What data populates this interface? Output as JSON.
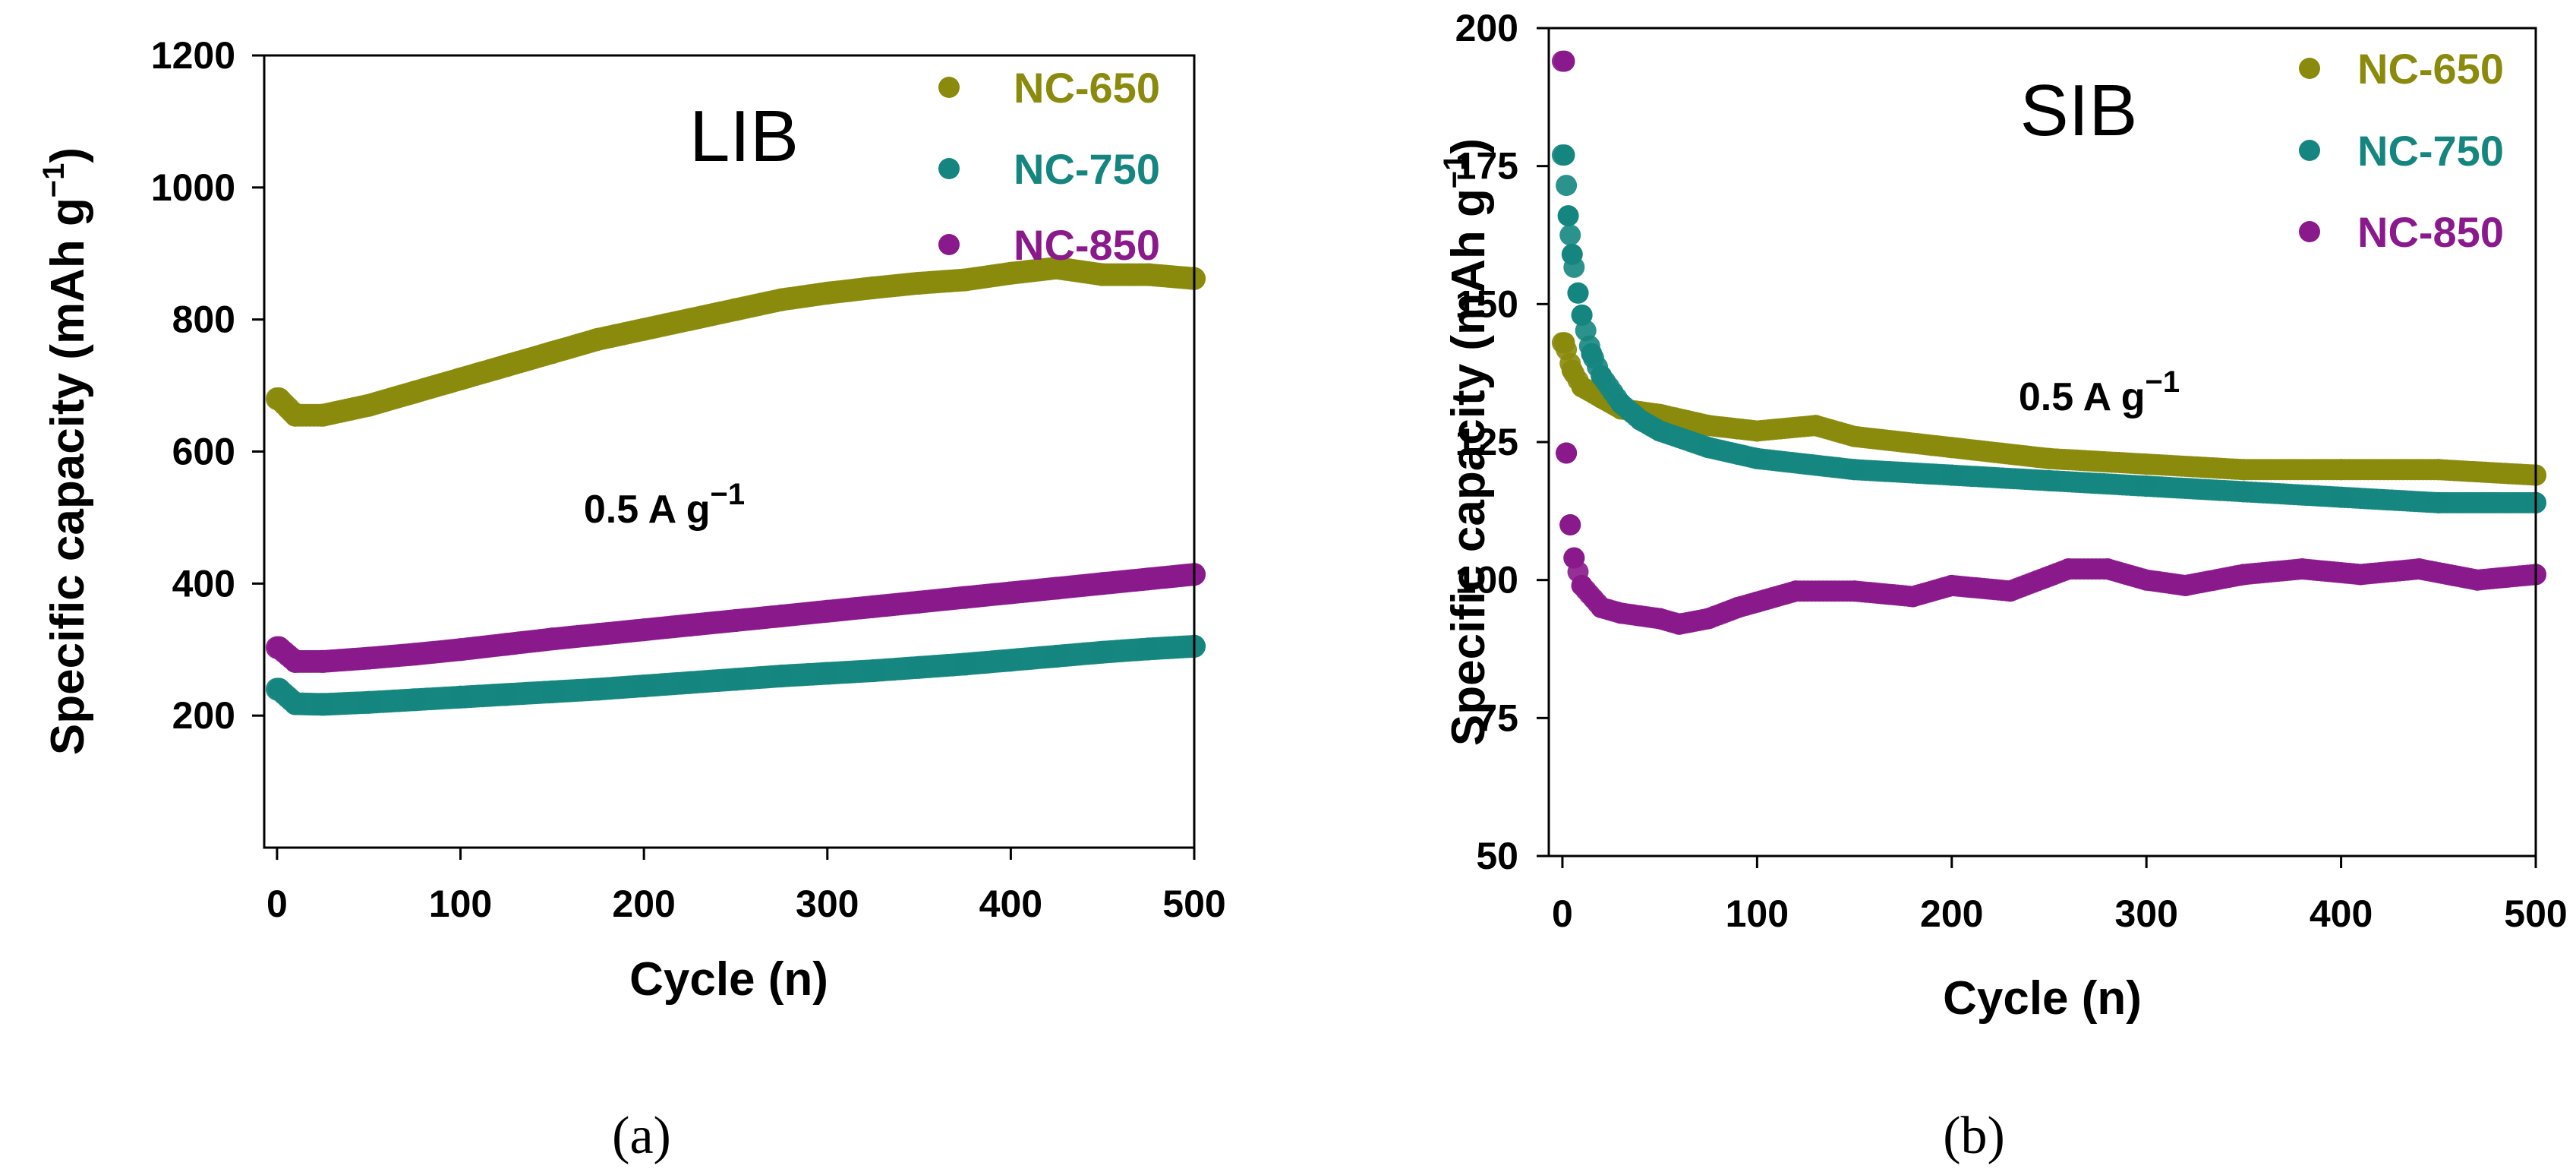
{
  "colors": {
    "NC-650": "#8a8a0c",
    "NC-750": "#15867f",
    "NC-850": "#8a1a8c"
  },
  "chart_data": [
    {
      "type": "scatter",
      "panel_label": "(a)",
      "title": "LIB",
      "annotation": {
        "text": "0.5 A g",
        "sup": "−1"
      },
      "xlabel": "Cycle (n)",
      "ylabel": {
        "text": "Specific capacity (mAh g",
        "sup": "−1",
        "close": ")"
      },
      "xlim": [
        -7,
        500
      ],
      "ylim": [
        0,
        1200
      ],
      "xticks": [
        0,
        100,
        200,
        300,
        400,
        500
      ],
      "yticks": [
        200,
        400,
        600,
        800,
        1000,
        1200
      ],
      "legend": [
        "NC-650",
        "NC-750",
        "NC-850"
      ],
      "legend_position": "top-right",
      "series": [
        {
          "name": "NC-650",
          "x": [
            1,
            10,
            25,
            50,
            75,
            100,
            125,
            150,
            175,
            200,
            225,
            250,
            275,
            300,
            325,
            350,
            375,
            400,
            425,
            450,
            475,
            500
          ],
          "y": [
            680,
            655,
            655,
            670,
            690,
            710,
            730,
            750,
            770,
            785,
            800,
            815,
            830,
            840,
            848,
            855,
            860,
            870,
            878,
            868,
            868,
            862
          ]
        },
        {
          "name": "NC-750",
          "x": [
            1,
            10,
            25,
            50,
            75,
            100,
            125,
            150,
            175,
            200,
            225,
            250,
            275,
            300,
            325,
            350,
            375,
            400,
            425,
            450,
            475,
            500
          ],
          "y": [
            240,
            218,
            217,
            220,
            224,
            228,
            232,
            236,
            240,
            245,
            250,
            255,
            260,
            264,
            268,
            273,
            278,
            284,
            290,
            296,
            301,
            305
          ]
        },
        {
          "name": "NC-850",
          "x": [
            1,
            10,
            25,
            50,
            75,
            100,
            125,
            150,
            175,
            200,
            225,
            250,
            275,
            300,
            325,
            350,
            375,
            400,
            425,
            450,
            475,
            500
          ],
          "y": [
            303,
            282,
            282,
            287,
            293,
            300,
            308,
            316,
            323,
            330,
            337,
            344,
            351,
            358,
            365,
            372,
            379,
            386,
            393,
            400,
            407,
            414
          ]
        }
      ]
    },
    {
      "type": "scatter",
      "panel_label": "(b)",
      "title": "SIB",
      "annotation": {
        "text": "0.5 A g",
        "sup": "−1"
      },
      "xlabel": "Cycle (n)",
      "ylabel": {
        "text": "Specific capacity (mAh g",
        "sup": "−1",
        "close": ")"
      },
      "xlim": [
        -7,
        500
      ],
      "ylim": [
        50,
        200
      ],
      "xticks": [
        0,
        100,
        200,
        300,
        400,
        500
      ],
      "yticks": [
        50,
        75,
        100,
        125,
        150,
        175,
        200
      ],
      "legend": [
        "NC-650",
        "NC-750",
        "NC-850"
      ],
      "legend_position": "top-right",
      "series": [
        {
          "name": "NC-650",
          "x": [
            1,
            5,
            10,
            20,
            30,
            50,
            75,
            100,
            130,
            150,
            200,
            250,
            300,
            350,
            400,
            450,
            500
          ],
          "y": [
            143,
            138,
            135,
            133,
            131,
            130,
            128,
            127,
            128,
            126,
            124,
            122,
            121,
            120,
            120,
            120,
            119
          ]
        },
        {
          "name": "NC-750",
          "x": [
            1,
            3,
            5,
            8,
            10,
            15,
            20,
            30,
            40,
            50,
            75,
            100,
            150,
            200,
            250,
            300,
            350,
            400,
            450,
            500
          ],
          "y": [
            177,
            166,
            159,
            152,
            148,
            141,
            137,
            132,
            129,
            127,
            124,
            122,
            120,
            119,
            118,
            117,
            116,
            115,
            114,
            114
          ]
        },
        {
          "name": "NC-850",
          "x": [
            1,
            2,
            4,
            6,
            10,
            20,
            30,
            50,
            60,
            75,
            90,
            100,
            120,
            150,
            180,
            200,
            230,
            260,
            280,
            300,
            320,
            350,
            380,
            410,
            440,
            470,
            500
          ],
          "y": [
            194,
            123,
            110,
            104,
            99,
            95,
            94,
            93,
            92,
            93,
            95,
            96,
            98,
            98,
            97,
            99,
            98,
            102,
            102,
            100,
            99,
            101,
            102,
            101,
            102,
            100,
            101
          ]
        }
      ]
    }
  ]
}
